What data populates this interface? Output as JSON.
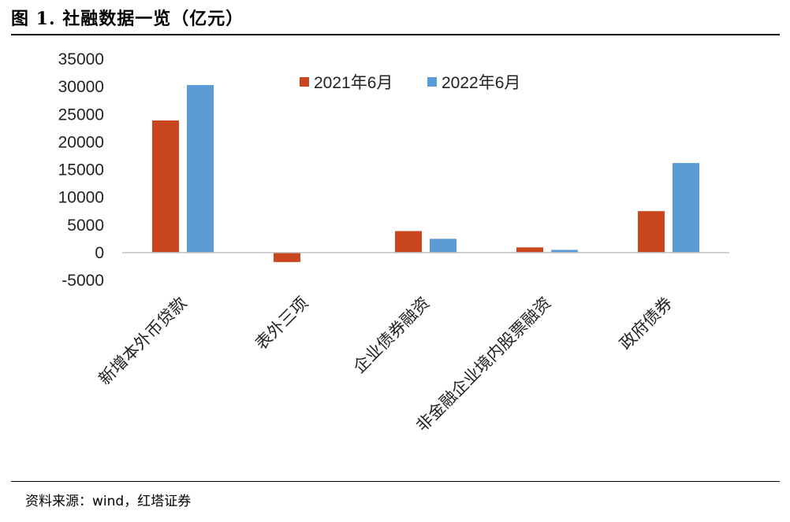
{
  "figure": {
    "title": "图 1. 社融数据一览（亿元）",
    "source": "资料来源：wind，红塔证券"
  },
  "chart_data": {
    "type": "bar",
    "title": "",
    "xlabel": "",
    "ylabel": "",
    "ylim": [
      -5000,
      35000
    ],
    "yticks": [
      35000,
      30000,
      25000,
      20000,
      15000,
      10000,
      5000,
      0,
      -5000
    ],
    "categories": [
      "新增本外币贷款",
      "表外三项",
      "企业债券融资",
      "非金融企业境内股票融资",
      "政府债券"
    ],
    "series": [
      {
        "name": "2021年6月",
        "color": "#C9461E",
        "values": [
          23900,
          -1700,
          3900,
          950,
          7500
        ]
      },
      {
        "name": "2022年6月",
        "color": "#5B9BD5",
        "values": [
          30300,
          0,
          2500,
          500,
          16200
        ]
      }
    ],
    "legend_position": "top-center",
    "grid": false
  }
}
